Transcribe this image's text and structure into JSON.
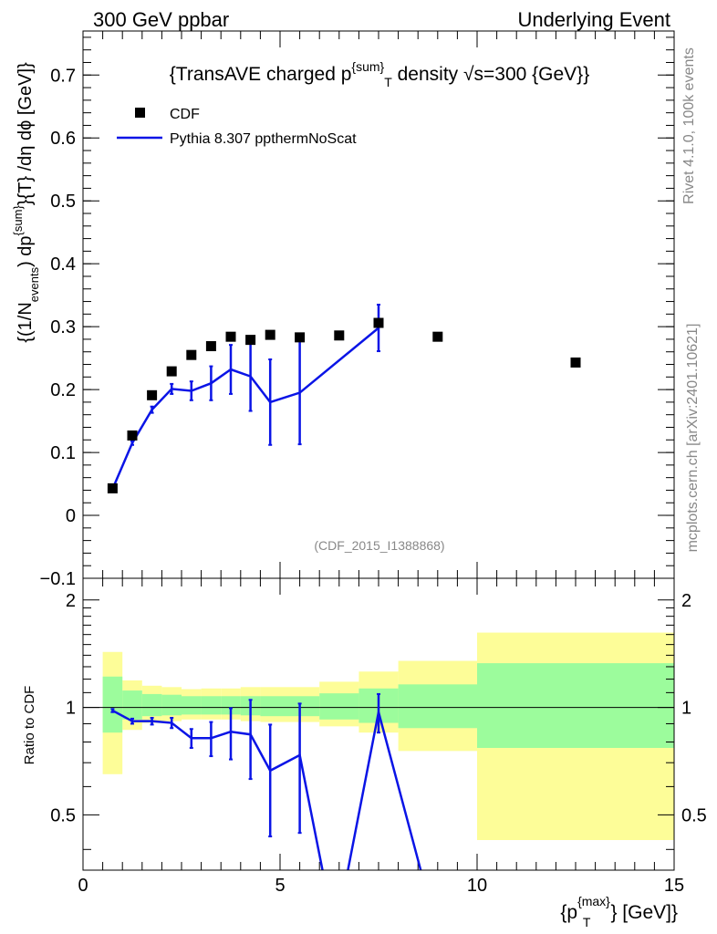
{
  "header": {
    "left": "300 GeV ppbar",
    "right": "Underlying Event"
  },
  "side": {
    "top": "Rivet 4.1.0,  100k events",
    "bottom": "mcplots.cern.ch [arXiv:2401.10621]"
  },
  "watermark": "(CDF_2015_I1388868)",
  "colors": {
    "data": "#000000",
    "mc": "#0a14e6",
    "band_inner": "#9cfc9c",
    "band_outer": "#fdfd98"
  },
  "chart_data": [
    {
      "type": "scatter",
      "title": "{TransAVE charged p^{sum}_T density √s=300 {GeV}}",
      "title_parts": {
        "pre": "{TransAVE charged p",
        "sup": "{sum}",
        "sub": "T",
        "post": " density √s=300 {GeV}}"
      },
      "ylabel": "{(1/N_{events}) dp^{sum}}{T} /dη  dϕ [GeV]}",
      "ylabel_parts": {
        "a": "{(1/N",
        "b": "events",
        "c": ") dp",
        "d": "{sum}",
        "e": "}{T} /dη  dϕ [GeV]}"
      },
      "xlim": [
        0,
        15
      ],
      "ylim": [
        -0.1,
        0.77
      ],
      "yticks": [
        -0.1,
        0,
        0.1,
        0.2,
        0.3,
        0.4,
        0.5,
        0.6,
        0.7
      ],
      "ytick_labels": [
        "−0.1",
        "0",
        "0.1",
        "0.2",
        "0.3",
        "0.4",
        "0.5",
        "0.6",
        "0.7"
      ],
      "legend": {
        "position": "top-left",
        "entries": [
          "CDF",
          "Pythia 8.307 ppthermNoScat"
        ]
      },
      "series": [
        {
          "name": "CDF",
          "kind": "markers",
          "x": [
            0.75,
            1.25,
            1.75,
            2.25,
            2.75,
            3.25,
            3.75,
            4.25,
            4.75,
            5.5,
            6.5,
            7.5,
            9.0,
            12.5
          ],
          "y": [
            0.043,
            0.127,
            0.191,
            0.229,
            0.255,
            0.269,
            0.284,
            0.279,
            0.287,
            0.283,
            0.286,
            0.306,
            0.284,
            0.243
          ]
        },
        {
          "name": "Pythia 8.307 ppthermNoScat",
          "kind": "line",
          "x": [
            0.75,
            1.25,
            1.75,
            2.25,
            2.75,
            3.25,
            3.75,
            4.25,
            4.75,
            5.5,
            7.5
          ],
          "y": [
            0.042,
            0.115,
            0.168,
            0.201,
            0.198,
            0.21,
            0.232,
            0.221,
            0.18,
            0.195,
            0.298
          ],
          "yerr": [
            0.002,
            0.003,
            0.005,
            0.008,
            0.015,
            0.027,
            0.039,
            0.055,
            0.068,
            0.082,
            0.037
          ]
        }
      ]
    },
    {
      "type": "line",
      "ylabel": "Ratio to CDF",
      "xlabel": "{p_{T}^{max}} [GeV]}",
      "xlabel_parts": {
        "a": "{p",
        "sup": "{max}",
        "sub": "T",
        "b": "} [GeV]}"
      },
      "xlim": [
        0,
        15
      ],
      "ylim": [
        0.35,
        2.3
      ],
      "yscale": "log",
      "xticks": [
        0,
        5,
        10,
        15
      ],
      "xtick_labels": [
        "0",
        "5",
        "10",
        "15"
      ],
      "yticks": [
        0.5,
        1,
        2
      ],
      "ytick_labels": [
        "0.5",
        "1",
        "2"
      ],
      "bands": {
        "edges": [
          0.5,
          1.0,
          1.5,
          2.0,
          2.5,
          3.0,
          3.5,
          4.0,
          4.5,
          5.0,
          6.0,
          7.0,
          8.0,
          10.0,
          15.0
        ],
        "inner_lo": [
          0.85,
          0.925,
          0.945,
          0.95,
          0.955,
          0.955,
          0.955,
          0.95,
          0.945,
          0.945,
          0.925,
          0.905,
          0.875,
          0.77
        ],
        "inner_hi": [
          1.22,
          1.115,
          1.09,
          1.085,
          1.075,
          1.075,
          1.075,
          1.075,
          1.075,
          1.075,
          1.095,
          1.13,
          1.16,
          1.33
        ],
        "outer_lo": [
          0.65,
          0.865,
          0.905,
          0.915,
          0.925,
          0.925,
          0.925,
          0.915,
          0.91,
          0.91,
          0.885,
          0.85,
          0.755,
          0.425
        ],
        "outer_hi": [
          1.43,
          1.19,
          1.15,
          1.14,
          1.125,
          1.13,
          1.13,
          1.14,
          1.14,
          1.14,
          1.18,
          1.26,
          1.35,
          1.62
        ]
      },
      "series": [
        {
          "name": "Pythia 8.307 ppthermNoScat / CDF",
          "x": [
            0.75,
            1.25,
            1.75,
            2.25,
            2.75,
            3.25,
            3.75,
            4.25,
            4.75,
            5.5,
            6.1,
            6.7,
            7.5,
            8.6
          ],
          "y": [
            0.98,
            0.915,
            0.915,
            0.905,
            0.82,
            0.82,
            0.855,
            0.84,
            0.665,
            0.735,
            0.34,
            0.34,
            0.97,
            0.34
          ],
          "yerr": [
            0.01,
            0.015,
            0.02,
            0.03,
            0.05,
            0.09,
            0.14,
            0.21,
            0.23,
            0.29,
            0,
            0,
            0.12,
            0
          ]
        }
      ]
    }
  ]
}
